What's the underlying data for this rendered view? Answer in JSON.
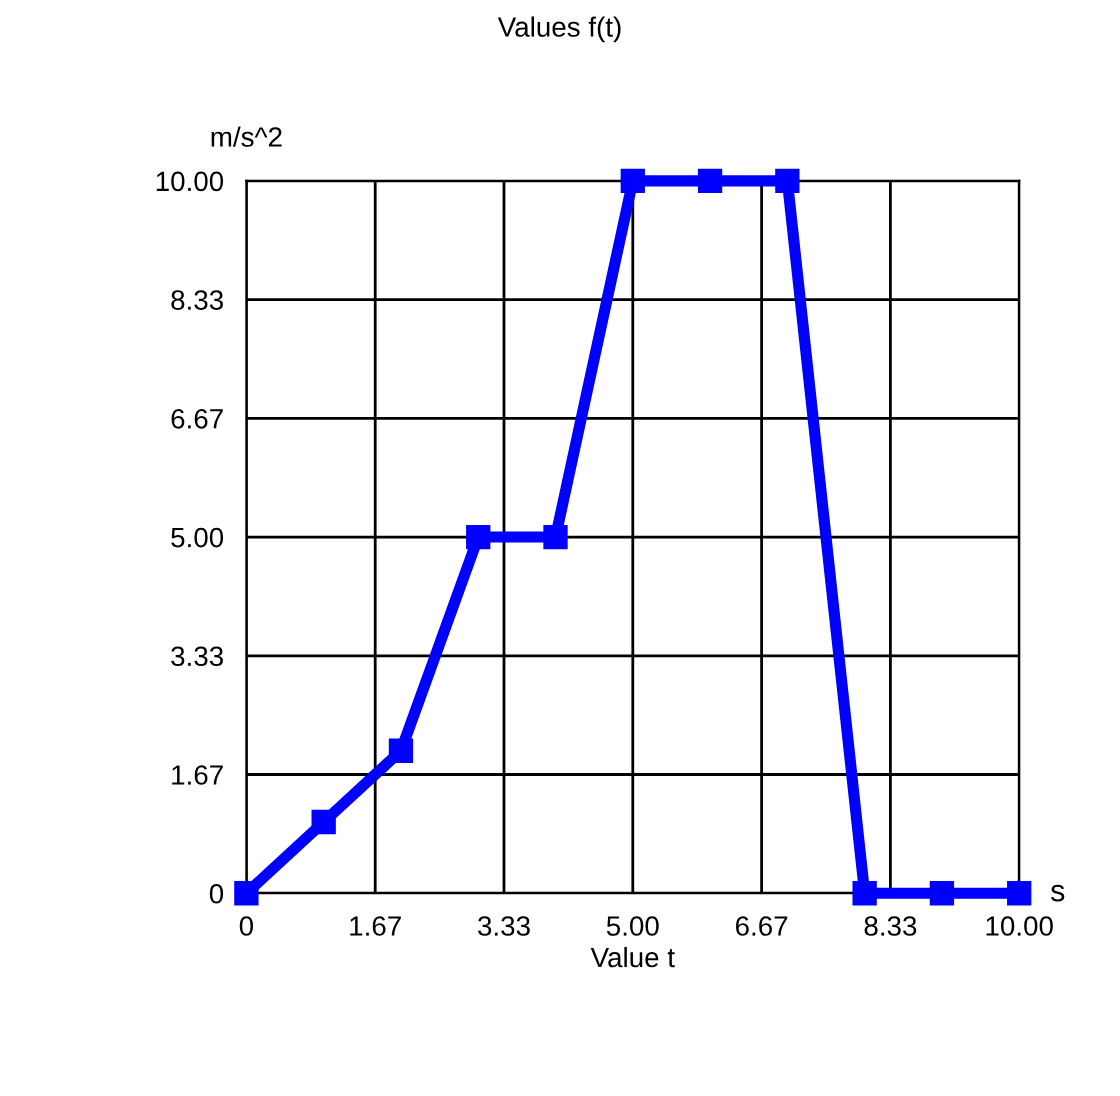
{
  "chart_data": {
    "type": "line",
    "title": "Values f(t)",
    "xlabel": "Value t",
    "ylabel": "m/s^2",
    "annotations": [
      "s"
    ],
    "x": [
      0,
      1,
      2,
      3,
      4,
      5,
      6,
      7,
      8,
      9,
      10
    ],
    "series": [
      {
        "color": "#0000ff",
        "values": [
          0,
          1,
          2,
          5,
          5,
          10,
          10,
          10,
          0,
          0,
          0
        ]
      }
    ],
    "xlim": [
      0,
      10
    ],
    "ylim": [
      0,
      10
    ],
    "xticks": [
      0,
      {
        "value": 1.6667,
        "label": "1.67"
      },
      {
        "value": 3.3333,
        "label": "3.33"
      },
      {
        "value": 5,
        "label": "5.00"
      },
      {
        "value": 6.6667,
        "label": "6.67"
      },
      {
        "value": 8.3333,
        "label": "8.33"
      },
      {
        "value": 10,
        "label": "10.00"
      }
    ],
    "yticks": [
      0,
      {
        "value": 1.6667,
        "label": "1.67"
      },
      {
        "value": 3.3333,
        "label": "3.33"
      },
      {
        "value": 5,
        "label": "5.00"
      },
      {
        "value": 6.6667,
        "label": "6.67"
      },
      {
        "value": 8.3333,
        "label": "8.33"
      },
      {
        "value": 10,
        "label": "10.00"
      }
    ],
    "grid": true,
    "marker": "square",
    "line_style": "solid"
  }
}
